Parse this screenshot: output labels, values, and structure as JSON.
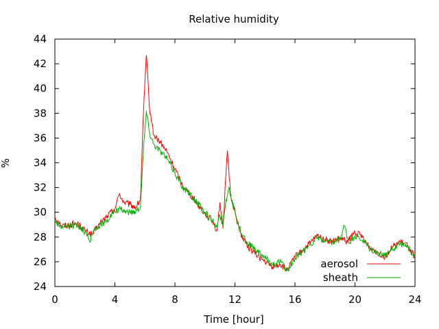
{
  "chart_data": {
    "type": "line",
    "title": "Relative humidity",
    "xlabel": "Time [hour]",
    "ylabel": "%",
    "xlim": [
      0,
      24
    ],
    "ylim": [
      24,
      44
    ],
    "xticks": [
      0,
      4,
      8,
      12,
      16,
      20,
      24
    ],
    "yticks": [
      24,
      26,
      28,
      30,
      32,
      34,
      36,
      38,
      40,
      42,
      44
    ],
    "grid": false,
    "legend": "bottom-right",
    "series": [
      {
        "name": "aerosol",
        "color": "#ff0000",
        "points": [
          [
            0,
            29.6
          ],
          [
            0.5,
            28.9
          ],
          [
            1,
            29.0
          ],
          [
            1.5,
            29.1
          ],
          [
            2,
            28.5
          ],
          [
            2.5,
            28.2
          ],
          [
            3,
            29.1
          ],
          [
            3.5,
            29.7
          ],
          [
            4,
            30.3
          ],
          [
            4.3,
            31.5
          ],
          [
            4.6,
            30.8
          ],
          [
            5,
            30.6
          ],
          [
            5.4,
            30.4
          ],
          [
            5.7,
            31.0
          ],
          [
            5.9,
            38.0
          ],
          [
            6.1,
            42.7
          ],
          [
            6.3,
            38.5
          ],
          [
            6.6,
            36.2
          ],
          [
            7,
            35.7
          ],
          [
            7.5,
            34.8
          ],
          [
            8,
            33.5
          ],
          [
            8.5,
            32.2
          ],
          [
            9,
            31.5
          ],
          [
            9.5,
            30.7
          ],
          [
            10,
            29.9
          ],
          [
            10.5,
            29.3
          ],
          [
            10.8,
            28.5
          ],
          [
            11.0,
            30.8
          ],
          [
            11.2,
            28.7
          ],
          [
            11.4,
            33.0
          ],
          [
            11.5,
            35.0
          ],
          [
            11.7,
            31.5
          ],
          [
            12,
            30.0
          ],
          [
            12.3,
            28.5
          ],
          [
            12.8,
            27.3
          ],
          [
            13.5,
            26.5
          ],
          [
            14,
            26.0
          ],
          [
            14.5,
            25.6
          ],
          [
            15,
            25.8
          ],
          [
            15.5,
            25.3
          ],
          [
            16,
            26.4
          ],
          [
            16.5,
            26.9
          ],
          [
            17,
            27.5
          ],
          [
            17.5,
            28.1
          ],
          [
            18,
            27.8
          ],
          [
            18.5,
            27.6
          ],
          [
            19,
            27.9
          ],
          [
            19.5,
            27.6
          ],
          [
            20,
            28.4
          ],
          [
            20.5,
            28.0
          ],
          [
            21,
            27.1
          ],
          [
            21.5,
            26.8
          ],
          [
            22,
            26.4
          ],
          [
            22.5,
            27.2
          ],
          [
            23,
            27.6
          ],
          [
            23.5,
            27.3
          ],
          [
            24,
            26.4
          ]
        ]
      },
      {
        "name": "sheath",
        "color": "#00b000",
        "points": [
          [
            0,
            29.3
          ],
          [
            0.5,
            28.7
          ],
          [
            1,
            28.9
          ],
          [
            1.5,
            29.0
          ],
          [
            2,
            28.4
          ],
          [
            2.3,
            27.7
          ],
          [
            2.6,
            28.6
          ],
          [
            3,
            28.9
          ],
          [
            3.5,
            29.4
          ],
          [
            4,
            30.1
          ],
          [
            4.4,
            30.2
          ],
          [
            5,
            30.0
          ],
          [
            5.4,
            30.1
          ],
          [
            5.7,
            30.5
          ],
          [
            5.9,
            35.0
          ],
          [
            6.1,
            38.2
          ],
          [
            6.3,
            36.5
          ],
          [
            6.6,
            35.5
          ],
          [
            7,
            35.0
          ],
          [
            7.5,
            34.3
          ],
          [
            8,
            33.2
          ],
          [
            8.5,
            32.1
          ],
          [
            9,
            31.4
          ],
          [
            9.5,
            30.8
          ],
          [
            10,
            30.0
          ],
          [
            10.5,
            29.3
          ],
          [
            10.8,
            28.8
          ],
          [
            11.0,
            29.8
          ],
          [
            11.2,
            28.9
          ],
          [
            11.4,
            31.0
          ],
          [
            11.6,
            32.0
          ],
          [
            11.8,
            31.0
          ],
          [
            12,
            30.2
          ],
          [
            12.3,
            28.7
          ],
          [
            12.8,
            27.6
          ],
          [
            13.5,
            26.8
          ],
          [
            14,
            26.3
          ],
          [
            14.5,
            25.8
          ],
          [
            15,
            26.0
          ],
          [
            15.5,
            25.3
          ],
          [
            16,
            26.2
          ],
          [
            16.5,
            26.8
          ],
          [
            17,
            27.4
          ],
          [
            17.5,
            27.9
          ],
          [
            18,
            27.6
          ],
          [
            18.5,
            27.5
          ],
          [
            19,
            27.8
          ],
          [
            19.3,
            28.9
          ],
          [
            19.6,
            27.5
          ],
          [
            20,
            28.1
          ],
          [
            20.5,
            27.7
          ],
          [
            21,
            27.0
          ],
          [
            21.5,
            26.7
          ],
          [
            22,
            26.5
          ],
          [
            22.5,
            27.0
          ],
          [
            23,
            27.5
          ],
          [
            23.5,
            27.2
          ],
          [
            24,
            26.5
          ]
        ]
      }
    ]
  }
}
